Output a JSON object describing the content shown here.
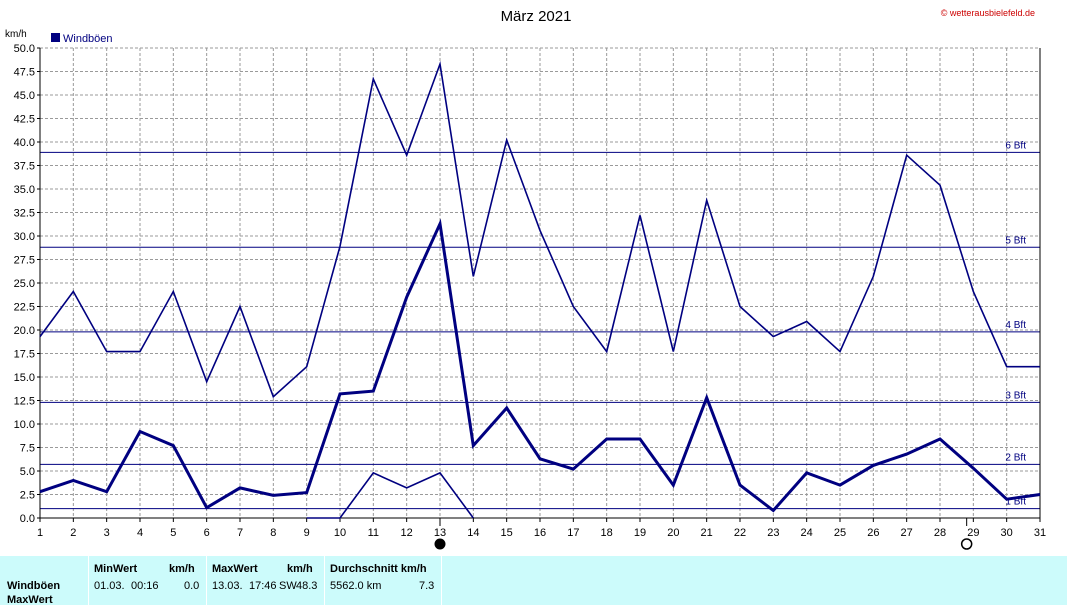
{
  "title": "März 2021",
  "copyright": "© wetterausbielefeld.de",
  "chart_data": {
    "type": "line",
    "title": "März 2021",
    "ylabel": "km/h",
    "ylim": [
      0,
      50
    ],
    "yticks": [
      "0.0",
      "2.5",
      "5.0",
      "7.5",
      "10.0",
      "12.5",
      "15.0",
      "17.5",
      "20.0",
      "22.5",
      "25.0",
      "27.5",
      "30.0",
      "32.5",
      "35.0",
      "37.5",
      "40.0",
      "42.5",
      "45.0",
      "47.5",
      "50.0"
    ],
    "x": [
      1,
      2,
      3,
      4,
      5,
      6,
      7,
      8,
      9,
      10,
      11,
      12,
      13,
      14,
      15,
      16,
      17,
      18,
      19,
      20,
      21,
      22,
      23,
      24,
      25,
      26,
      27,
      28,
      29,
      30,
      31
    ],
    "legend": [
      "Windböen"
    ],
    "series": [
      {
        "name": "Windböen",
        "role": "max",
        "color": "#000080",
        "values": [
          19.3,
          24.1,
          17.7,
          17.7,
          24.1,
          14.5,
          22.5,
          12.9,
          16.1,
          28.9,
          46.7,
          38.6,
          48.3,
          25.7,
          40.2,
          30.6,
          22.5,
          17.7,
          32.2,
          17.7,
          33.8,
          22.5,
          19.3,
          20.9,
          17.7,
          25.7,
          38.6,
          35.4,
          24.1,
          16.1,
          16.1
        ]
      },
      {
        "role": "mean",
        "color": "#000080",
        "values": [
          2.8,
          4.0,
          2.8,
          9.2,
          7.7,
          1.1,
          3.2,
          2.4,
          2.7,
          13.2,
          13.5,
          23.5,
          31.3,
          7.7,
          11.7,
          6.3,
          5.2,
          8.4,
          8.4,
          3.5,
          12.8,
          3.5,
          0.8,
          4.8,
          3.5,
          5.6,
          6.8,
          8.4,
          5.3,
          2.0,
          2.5
        ]
      },
      {
        "role": "min",
        "color": "#000080",
        "values": [
          null,
          null,
          null,
          null,
          null,
          null,
          null,
          null,
          0.0,
          0.0,
          4.8,
          3.2,
          4.8,
          0.0,
          null,
          null,
          null,
          null,
          null,
          null,
          null,
          null,
          null,
          null,
          null,
          null,
          null,
          null,
          null,
          null,
          null
        ]
      }
    ],
    "beaufort": [
      {
        "label": "1 Bft",
        "value": 1.0
      },
      {
        "label": "2 Bft",
        "value": 5.7
      },
      {
        "label": "3 Bft",
        "value": 12.3
      },
      {
        "label": "4 Bft",
        "value": 19.8
      },
      {
        "label": "5 Bft",
        "value": 28.8
      },
      {
        "label": "6 Bft",
        "value": 38.9
      }
    ],
    "moon": [
      {
        "day": 13.0,
        "phase": "new"
      },
      {
        "day": 28.8,
        "phase": "full"
      }
    ],
    "grid": true
  },
  "footer": {
    "row_labels": [
      "Windböen",
      "MaxWert"
    ],
    "min": {
      "title": "MinWert",
      "unit": "km/h",
      "date": "01.03.",
      "time": "00:16",
      "value": "0.0"
    },
    "max": {
      "title": "MaxWert",
      "unit": "km/h",
      "date": "13.03.",
      "time": "17:46",
      "dir": "SW",
      "value": "48.3"
    },
    "avg": {
      "title": "Durchschnitt km/h",
      "distance": "5562.0 km",
      "value": "7.3"
    }
  }
}
